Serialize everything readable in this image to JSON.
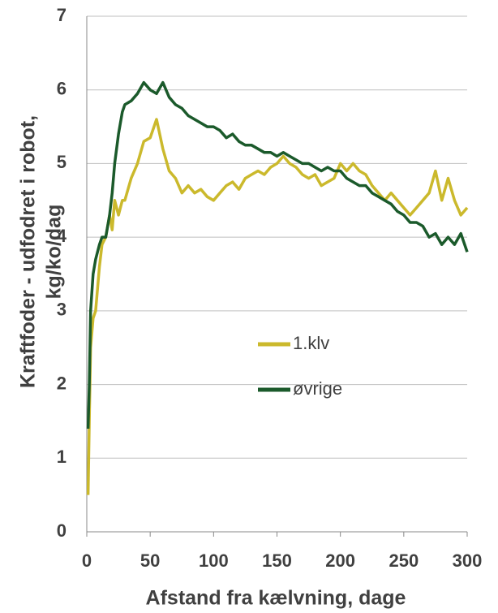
{
  "chart_data": {
    "type": "line",
    "xlabel": "Afstand fra kælvning, dage",
    "ylabel": [
      "Kraftfoder - udfodret i robot,",
      "kg/ko/dag"
    ],
    "x": [
      1,
      2,
      3,
      5,
      7,
      10,
      12,
      15,
      18,
      20,
      22,
      25,
      28,
      30,
      35,
      40,
      45,
      50,
      55,
      60,
      65,
      70,
      75,
      80,
      85,
      90,
      95,
      100,
      105,
      110,
      115,
      120,
      125,
      130,
      135,
      140,
      145,
      150,
      155,
      160,
      165,
      170,
      175,
      180,
      185,
      190,
      195,
      200,
      205,
      210,
      215,
      220,
      225,
      230,
      235,
      240,
      245,
      250,
      255,
      260,
      265,
      270,
      275,
      280,
      285,
      290,
      295,
      300
    ],
    "series": [
      {
        "name": "1.klv",
        "color": "#cbb92c",
        "values": [
          0.5,
          1.5,
          2.5,
          2.9,
          3.0,
          3.6,
          3.9,
          4.0,
          4.3,
          4.1,
          4.5,
          4.3,
          4.5,
          4.5,
          4.8,
          5.0,
          5.3,
          5.35,
          5.6,
          5.2,
          4.9,
          4.8,
          4.6,
          4.7,
          4.6,
          4.65,
          4.55,
          4.5,
          4.6,
          4.7,
          4.75,
          4.65,
          4.8,
          4.85,
          4.9,
          4.85,
          4.95,
          5.0,
          5.1,
          5.0,
          4.95,
          4.85,
          4.8,
          4.85,
          4.7,
          4.75,
          4.8,
          5.0,
          4.9,
          5.0,
          4.9,
          4.85,
          4.7,
          4.6,
          4.5,
          4.6,
          4.5,
          4.4,
          4.3,
          4.4,
          4.5,
          4.6,
          4.9,
          4.5,
          4.8,
          4.5,
          4.3,
          4.4
        ]
      },
      {
        "name": "øvrige",
        "color": "#1b5a2b",
        "values": [
          1.4,
          2.0,
          3.0,
          3.5,
          3.7,
          3.9,
          4.0,
          4.0,
          4.3,
          4.6,
          5.0,
          5.4,
          5.7,
          5.8,
          5.85,
          5.95,
          6.1,
          6.0,
          5.95,
          6.1,
          5.9,
          5.8,
          5.75,
          5.65,
          5.6,
          5.55,
          5.5,
          5.5,
          5.45,
          5.35,
          5.4,
          5.3,
          5.25,
          5.25,
          5.2,
          5.15,
          5.15,
          5.1,
          5.15,
          5.1,
          5.05,
          5.0,
          5.0,
          4.95,
          4.9,
          4.95,
          4.9,
          4.9,
          4.8,
          4.75,
          4.7,
          4.7,
          4.6,
          4.55,
          4.5,
          4.45,
          4.35,
          4.3,
          4.2,
          4.2,
          4.15,
          4.0,
          4.05,
          3.9,
          4.0,
          3.9,
          4.05,
          3.8
        ]
      }
    ],
    "xlim": [
      0,
      300
    ],
    "xticks": [
      0,
      50,
      100,
      150,
      200,
      250,
      300
    ],
    "ylim": [
      0,
      7
    ],
    "yticks": [
      0,
      1,
      2,
      3,
      4,
      5,
      6,
      7
    ],
    "grid": true
  }
}
